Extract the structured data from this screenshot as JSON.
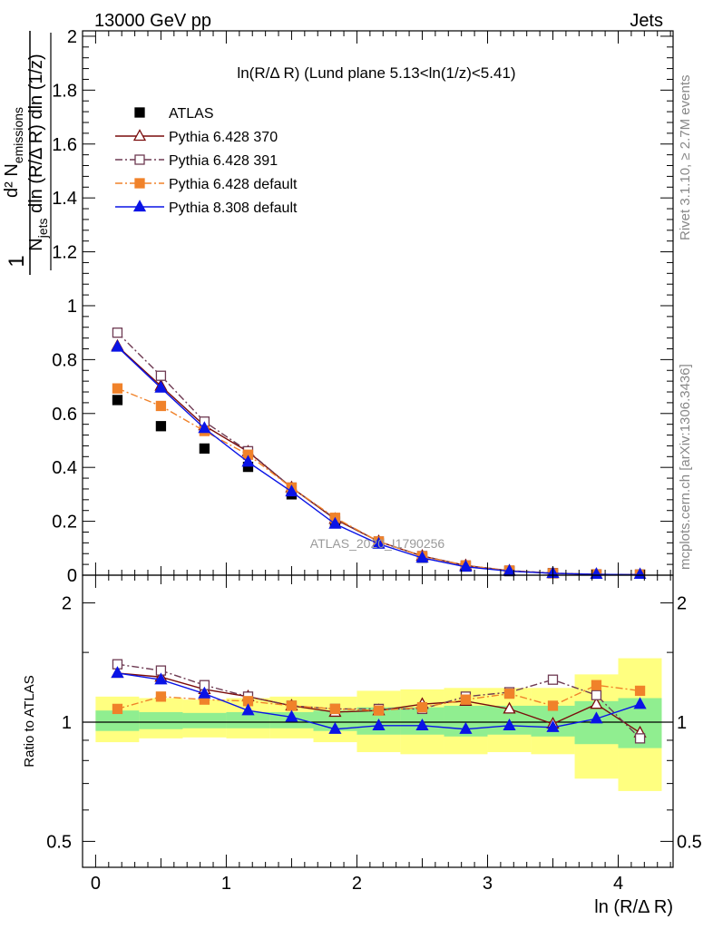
{
  "header": {
    "energy_label": "13000 GeV pp",
    "process_label": "Jets"
  },
  "side_labels": {
    "rivet": "Rivet 3.1.10, ≥ 2.7M events",
    "mcplots": "mcplots.cern.ch [arXiv:1306.3436]"
  },
  "watermark": "ATLAS_2020_I1790256",
  "chart_data": [
    {
      "type": "scatter",
      "title": "ln(R/Δ R) (Lund plane 5.13<ln(1/z)<5.41)",
      "xlabel": "ln (R/Δ R)",
      "ylabel_frac_top": "d² N",
      "ylabel_frac_top_sub": "emissions",
      "ylabel_frac_bottom": "N",
      "ylabel_frac_bottom_sub": "jets",
      "ylabel_frac_bottom_rest": " dln (R/Δ R) dln (1/z)",
      "ylabel_prefix": "1",
      "xlim": [
        -0.1,
        4.42
      ],
      "ylim": [
        0,
        2.02
      ],
      "yticks": [
        0,
        0.2,
        0.4,
        0.6,
        0.8,
        1,
        1.2,
        1.4,
        1.6,
        1.8,
        2
      ],
      "ytick_labels": [
        "0",
        "0.2",
        "0.4",
        "0.6",
        "0.8",
        "1",
        "1.2",
        "1.4",
        "1.6",
        "1.8",
        "2"
      ],
      "legend_position": "top-left",
      "x": [
        0.167,
        0.5,
        0.833,
        1.167,
        1.5,
        1.833,
        2.167,
        2.5,
        2.833,
        3.167,
        3.5,
        3.833,
        4.167
      ],
      "series": [
        {
          "name": "ATLAS",
          "color": "#000000",
          "marker": "square-filled",
          "line": "none",
          "values": [
            0.65,
            0.553,
            0.47,
            0.402,
            0.3,
            0.199,
            0.118,
            0.065,
            0.032,
            0.015,
            0.007,
            0.003,
            0.002
          ]
        },
        {
          "name": "Pythia 6.428 370",
          "color": "#7a0c0c",
          "marker": "triangle-open",
          "line": "solid",
          "values": [
            0.85,
            0.702,
            0.555,
            0.458,
            0.325,
            0.208,
            0.125,
            0.071,
            0.036,
            0.016,
            0.007,
            0.003,
            0.002
          ]
        },
        {
          "name": "Pythia 6.428 391",
          "color": "#6e3a52",
          "marker": "square-open",
          "line": "dashdot",
          "values": [
            0.9,
            0.74,
            0.57,
            0.46,
            0.325,
            0.21,
            0.125,
            0.071,
            0.036,
            0.017,
            0.008,
            0.003,
            0.002
          ]
        },
        {
          "name": "Pythia 6.428 default",
          "color": "#f0822a",
          "marker": "square-filled",
          "line": "dashdot",
          "values": [
            0.693,
            0.628,
            0.535,
            0.447,
            0.325,
            0.213,
            0.125,
            0.07,
            0.036,
            0.017,
            0.007,
            0.003,
            0.002
          ]
        },
        {
          "name": "Pythia 8.308 default",
          "color": "#0a14e6",
          "marker": "triangle-filled",
          "line": "solid",
          "values": [
            0.847,
            0.695,
            0.545,
            0.42,
            0.31,
            0.19,
            0.116,
            0.064,
            0.031,
            0.015,
            0.007,
            0.003,
            0.002
          ]
        }
      ]
    },
    {
      "type": "scatter",
      "ylabel": "Ratio to ATLAS",
      "xlabel": "ln (R/Δ R)",
      "xlim": [
        -0.1,
        4.42
      ],
      "xticks": [
        0,
        1,
        2,
        3,
        4
      ],
      "xtick_labels": [
        "0",
        "1",
        "2",
        "3",
        "4"
      ],
      "ylim": [
        0.43,
        2.35
      ],
      "y_scale": "log",
      "yticks": [
        0.5,
        1,
        2
      ],
      "ytick_labels": [
        "0.5",
        "1",
        "2"
      ],
      "reference_line": 1,
      "x": [
        0.167,
        0.5,
        0.833,
        1.167,
        1.5,
        1.833,
        2.167,
        2.5,
        2.833,
        3.167,
        3.5,
        3.833,
        4.167
      ],
      "bin_edges": [
        0,
        0.333,
        0.667,
        1.0,
        1.333,
        1.667,
        2.0,
        2.333,
        2.667,
        3.0,
        3.333,
        3.667,
        4.0,
        4.333
      ],
      "band_inner": {
        "color": "#90ee90",
        "lower": [
          0.95,
          0.96,
          0.965,
          0.965,
          0.965,
          0.95,
          0.93,
          0.93,
          0.92,
          0.93,
          0.92,
          0.88,
          0.86
        ],
        "upper": [
          1.07,
          1.06,
          1.055,
          1.06,
          1.06,
          1.07,
          1.09,
          1.09,
          1.1,
          1.1,
          1.1,
          1.13,
          1.15
        ]
      },
      "band_outer": {
        "color": "#ffff80",
        "lower": [
          0.89,
          0.91,
          0.915,
          0.91,
          0.91,
          0.89,
          0.84,
          0.83,
          0.83,
          0.84,
          0.83,
          0.72,
          0.67
        ],
        "upper": [
          1.16,
          1.15,
          1.14,
          1.15,
          1.16,
          1.16,
          1.2,
          1.21,
          1.22,
          1.22,
          1.22,
          1.32,
          1.45
        ]
      },
      "series": [
        {
          "name": "Pythia 6.428 370",
          "color": "#7a0c0c",
          "marker": "triangle-open",
          "line": "solid",
          "values": [
            1.33,
            1.3,
            1.21,
            1.16,
            1.1,
            1.06,
            1.07,
            1.11,
            1.13,
            1.08,
            0.99,
            1.11,
            0.94
          ]
        },
        {
          "name": "Pythia 6.428 391",
          "color": "#6e3a52",
          "marker": "square-open",
          "line": "dashdot",
          "values": [
            1.4,
            1.35,
            1.24,
            1.16,
            1.1,
            1.08,
            1.08,
            1.08,
            1.16,
            1.19,
            1.28,
            1.17,
            0.91
          ]
        },
        {
          "name": "Pythia 6.428 default",
          "color": "#f0822a",
          "marker": "square-filled",
          "line": "dashdot",
          "values": [
            1.08,
            1.16,
            1.14,
            1.13,
            1.1,
            1.08,
            1.07,
            1.09,
            1.14,
            1.18,
            1.1,
            1.24,
            1.2
          ]
        },
        {
          "name": "Pythia 8.308 default",
          "color": "#0a14e6",
          "marker": "triangle-filled",
          "line": "solid",
          "values": [
            1.33,
            1.28,
            1.18,
            1.07,
            1.03,
            0.96,
            0.98,
            0.98,
            0.96,
            0.98,
            0.97,
            1.02,
            1.11
          ]
        }
      ]
    }
  ]
}
